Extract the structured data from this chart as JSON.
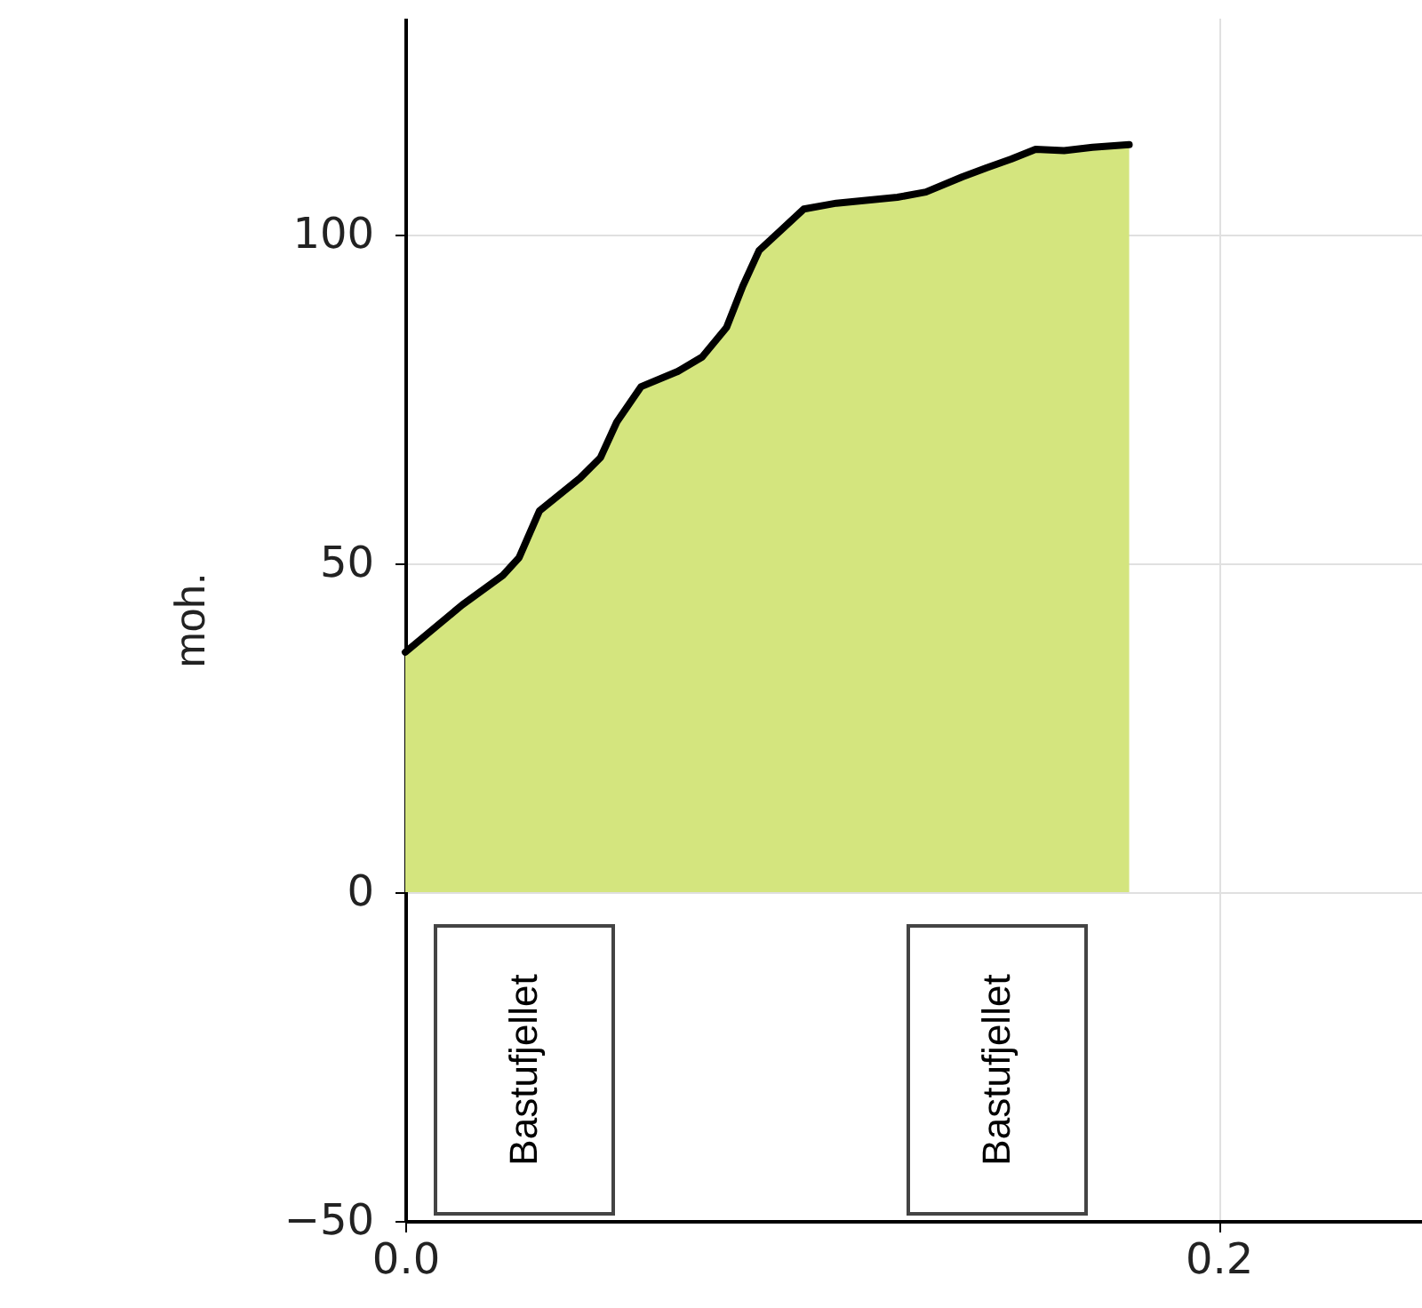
{
  "chart_data": {
    "type": "area",
    "ylabel": "moh.",
    "x": [
      0,
      0.014,
      0.024,
      0.028,
      0.033,
      0.043,
      0.048,
      0.052,
      0.058,
      0.067,
      0.073,
      0.079,
      0.083,
      0.087,
      0.098,
      0.106,
      0.121,
      0.128,
      0.137,
      0.143,
      0.149,
      0.155,
      0.162,
      0.169,
      0.178
    ],
    "series": [
      {
        "color": "#d4e57e",
        "values": [
          36.5,
          43.7,
          48.2,
          50.9,
          58,
          63,
          66.1,
          71.5,
          76.9,
          79.2,
          81.4,
          85.9,
          92.2,
          97.6,
          103.9,
          104.8,
          105.7,
          106.5,
          108.8,
          110.2,
          111.5,
          113,
          112.8,
          113.3,
          113.7
        ]
      }
    ],
    "xlim": [
      0,
      0.25
    ],
    "xticks": [
      {
        "value": 0,
        "label": "0.0"
      },
      {
        "value": 0.2,
        "label": "0.2"
      }
    ],
    "ylim": [
      -50,
      133
    ],
    "yticks": [
      {
        "value": -50,
        "label": "−50"
      },
      0,
      50,
      100
    ],
    "grid": true,
    "annotations": [
      "Bastufjellet",
      "Bastufjellet"
    ]
  }
}
